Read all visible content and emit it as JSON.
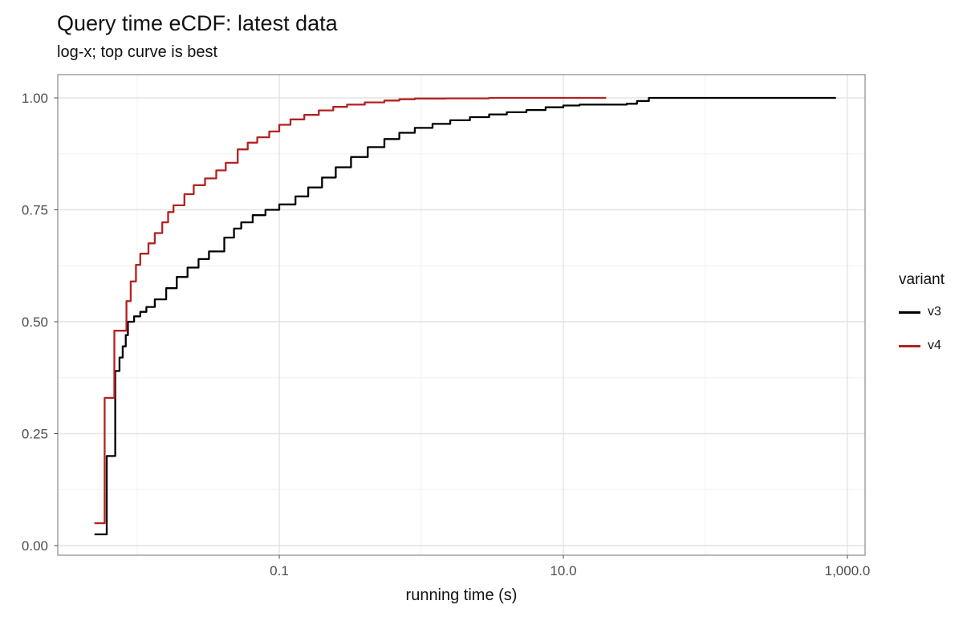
{
  "title": "Query time eCDF: latest data",
  "subtitle": "log-x; top curve is best",
  "colors": {
    "v3": "#000000",
    "v4": "#B22222",
    "grid_major": "#E4E4E4",
    "grid_minor": "#F0F0F0",
    "panel_border": "#8A8A8A",
    "tick_text": "#4D4D4D",
    "background": "#FFFFFF"
  },
  "legend": {
    "title": "variant",
    "entries": [
      {
        "label": "v3",
        "color": "#000000"
      },
      {
        "label": "v4",
        "color": "#B22222"
      }
    ]
  },
  "axes": {
    "x": {
      "title": "running time (s)",
      "scale": "log10",
      "range": [
        0.0027,
        1330
      ],
      "major_ticks": [
        {
          "value": 0.1,
          "label": "0.1"
        },
        {
          "value": 10,
          "label": "10.0"
        },
        {
          "value": 1000,
          "label": "1,000.0"
        }
      ],
      "minor_ticks": [
        0.01,
        1,
        100
      ]
    },
    "y": {
      "title": "",
      "range": [
        -0.03,
        1.05
      ],
      "major_ticks": [
        {
          "value": 0.0,
          "label": "0.00"
        },
        {
          "value": 0.25,
          "label": "0.25"
        },
        {
          "value": 0.5,
          "label": "0.50"
        },
        {
          "value": 0.75,
          "label": "0.75"
        },
        {
          "value": 1.0,
          "label": "1.00"
        }
      ],
      "minor_ticks": [
        0.125,
        0.375,
        0.625,
        0.875
      ]
    }
  },
  "chart_data": {
    "type": "line",
    "subtype": "ecdf-step",
    "title": "Query time eCDF: latest data",
    "subtitle": "log-x; top curve is best",
    "xlabel": "running time (s)",
    "ylabel": "",
    "x_scale": "log10",
    "xlim": [
      0.0027,
      1330
    ],
    "ylim": [
      -0.03,
      1.05
    ],
    "grid": true,
    "legend_position": "right",
    "series": [
      {
        "name": "v3",
        "color": "#000000",
        "points": [
          [
            0.005,
            0.025
          ],
          [
            0.0061,
            0.2
          ],
          [
            0.007,
            0.39
          ],
          [
            0.0075,
            0.42
          ],
          [
            0.0079,
            0.445
          ],
          [
            0.0083,
            0.47
          ],
          [
            0.0086,
            0.5
          ],
          [
            0.0095,
            0.512
          ],
          [
            0.0105,
            0.522
          ],
          [
            0.0116,
            0.533
          ],
          [
            0.0133,
            0.55
          ],
          [
            0.016,
            0.575
          ],
          [
            0.019,
            0.6
          ],
          [
            0.0226,
            0.621
          ],
          [
            0.027,
            0.64
          ],
          [
            0.032,
            0.657
          ],
          [
            0.041,
            0.688
          ],
          [
            0.048,
            0.708
          ],
          [
            0.054,
            0.722
          ],
          [
            0.065,
            0.738
          ],
          [
            0.08,
            0.75
          ],
          [
            0.1,
            0.762
          ],
          [
            0.13,
            0.78
          ],
          [
            0.16,
            0.8
          ],
          [
            0.2,
            0.822
          ],
          [
            0.25,
            0.845
          ],
          [
            0.32,
            0.868
          ],
          [
            0.42,
            0.89
          ],
          [
            0.55,
            0.908
          ],
          [
            0.7,
            0.922
          ],
          [
            0.9,
            0.933
          ],
          [
            1.2,
            0.942
          ],
          [
            1.6,
            0.95
          ],
          [
            2.2,
            0.957
          ],
          [
            3.0,
            0.963
          ],
          [
            4.0,
            0.968
          ],
          [
            5.5,
            0.973
          ],
          [
            7.5,
            0.979
          ],
          [
            10,
            0.983
          ],
          [
            13,
            0.985
          ],
          [
            28,
            0.987
          ],
          [
            33,
            0.993
          ],
          [
            40,
            1.0
          ],
          [
            830,
            1.0
          ]
        ]
      },
      {
        "name": "v4",
        "color": "#B22222",
        "points": [
          [
            0.005,
            0.05
          ],
          [
            0.0059,
            0.33
          ],
          [
            0.0069,
            0.48
          ],
          [
            0.0084,
            0.546
          ],
          [
            0.009,
            0.59
          ],
          [
            0.0098,
            0.627
          ],
          [
            0.0105,
            0.652
          ],
          [
            0.012,
            0.675
          ],
          [
            0.0133,
            0.698
          ],
          [
            0.015,
            0.722
          ],
          [
            0.0165,
            0.745
          ],
          [
            0.018,
            0.76
          ],
          [
            0.0215,
            0.785
          ],
          [
            0.025,
            0.805
          ],
          [
            0.03,
            0.82
          ],
          [
            0.036,
            0.838
          ],
          [
            0.042,
            0.855
          ],
          [
            0.051,
            0.885
          ],
          [
            0.06,
            0.9
          ],
          [
            0.07,
            0.912
          ],
          [
            0.085,
            0.925
          ],
          [
            0.1,
            0.94
          ],
          [
            0.12,
            0.952
          ],
          [
            0.15,
            0.962
          ],
          [
            0.19,
            0.972
          ],
          [
            0.24,
            0.98
          ],
          [
            0.3,
            0.985
          ],
          [
            0.4,
            0.99
          ],
          [
            0.55,
            0.994
          ],
          [
            0.7,
            0.997
          ],
          [
            0.9,
            0.9985
          ],
          [
            1.5,
            0.999
          ],
          [
            3.0,
            1.0
          ],
          [
            20,
            1.0
          ]
        ]
      }
    ]
  }
}
